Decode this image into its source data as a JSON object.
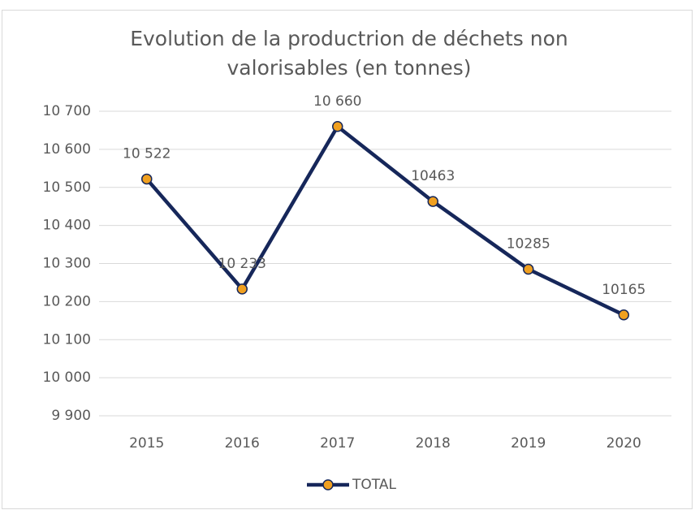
{
  "chart_data": {
    "type": "line",
    "title": "Evolution de la productrion de déchets non valorisables (en tonnes)",
    "categories": [
      "2015",
      "2016",
      "2017",
      "2018",
      "2019",
      "2020"
    ],
    "series": [
      {
        "name": "TOTAL",
        "color": "#16275a",
        "marker_color": "#f0a020",
        "values": [
          10522,
          10233,
          10660,
          10463,
          10285,
          10165
        ],
        "value_labels": [
          "10 522",
          "10 233",
          "10 660",
          "10463",
          "10285",
          "10165"
        ]
      }
    ],
    "ylim": [
      9900,
      10700
    ],
    "yticks": [
      {
        "value": 9900,
        "label": "9 900"
      },
      {
        "value": 10000,
        "label": "10 000"
      },
      {
        "value": 10100,
        "label": "10 100"
      },
      {
        "value": 10200,
        "label": "10 200"
      },
      {
        "value": 10300,
        "label": "10 300"
      },
      {
        "value": 10400,
        "label": "10 400"
      },
      {
        "value": 10500,
        "label": "10 500"
      },
      {
        "value": 10600,
        "label": "10 600"
      },
      {
        "value": 10700,
        "label": "10 700"
      }
    ],
    "grid": true,
    "legend": "bottom"
  }
}
